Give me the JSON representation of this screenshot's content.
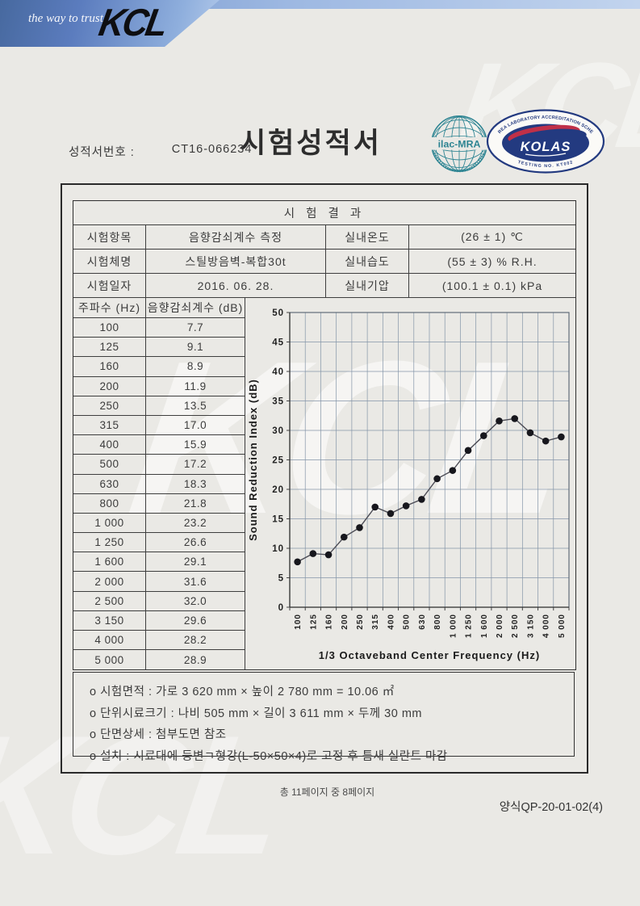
{
  "banner": {
    "tagline": "the way to trust",
    "logo_text": "KCL"
  },
  "title": "시험성적서",
  "report_no": {
    "label": "성적서번호 :",
    "value": "CT16-066234"
  },
  "seals": {
    "ilac": {
      "text": "ilac-MRA"
    },
    "kolas": {
      "ring_text": "KOREA LABORATORY ACCREDITATION SCHEME",
      "name": "KOLAS",
      "bottom_text": "TESTING NO. KT002"
    }
  },
  "results": {
    "header": "시 험 결 과",
    "rows": [
      {
        "label": "시험항목",
        "value": "음향감쇠계수 측정",
        "label2": "실내온도",
        "value2": "(26 ± 1) ℃"
      },
      {
        "label": "시험체명",
        "value": "스틸방음벽-복합30t",
        "label2": "실내습도",
        "value2": "(55 ± 3) % R.H."
      },
      {
        "label": "시험일자",
        "value": "2016. 06. 28.",
        "label2": "실내기압",
        "value2": "(100.1 ± 0.1) kPa"
      }
    ]
  },
  "freq_table": {
    "col1": "주파수 (Hz)",
    "col2": "음향감쇠계수 (dB)",
    "rows": [
      [
        "100",
        "7.7"
      ],
      [
        "125",
        "9.1"
      ],
      [
        "160",
        "8.9"
      ],
      [
        "200",
        "11.9"
      ],
      [
        "250",
        "13.5"
      ],
      [
        "315",
        "17.0"
      ],
      [
        "400",
        "15.9"
      ],
      [
        "500",
        "17.2"
      ],
      [
        "630",
        "18.3"
      ],
      [
        "800",
        "21.8"
      ],
      [
        "1 000",
        "23.2"
      ],
      [
        "1 250",
        "26.6"
      ],
      [
        "1 600",
        "29.1"
      ],
      [
        "2 000",
        "31.6"
      ],
      [
        "2 500",
        "32.0"
      ],
      [
        "3 150",
        "29.6"
      ],
      [
        "4 000",
        "28.2"
      ],
      [
        "5 000",
        "28.9"
      ]
    ]
  },
  "chart_data": {
    "type": "line",
    "categories": [
      "100",
      "125",
      "160",
      "200",
      "250",
      "315",
      "400",
      "500",
      "630",
      "800",
      "1 000",
      "1 250",
      "1 600",
      "2 000",
      "2 500",
      "3 150",
      "4 000",
      "5 000"
    ],
    "values": [
      7.7,
      9.1,
      8.9,
      11.9,
      13.5,
      17.0,
      15.9,
      17.2,
      18.3,
      21.8,
      23.2,
      26.6,
      29.1,
      31.6,
      32.0,
      29.6,
      28.2,
      28.9
    ],
    "title": "",
    "xlabel": "1/3 Octaveband Center Frequency (Hz)",
    "ylabel": "Sound Reduction Index (dB)",
    "ylim": [
      0,
      50
    ],
    "ytick_step": 5,
    "grid": true,
    "marker": "circle",
    "legend": "none"
  },
  "notes": [
    "o 시험면적 : 가로 3 620 mm × 높이 2 780 mm = 10.06 ㎡",
    "o 단위시료크기 : 나비 505 mm × 길이 3 611 mm × 두께 30 mm",
    "o 단면상세 : 첨부도면 참조",
    "o 설치 : 시료대에 등변ㄱ형강(L-50×50×4)로 고정 후 틈새 실란트 마감"
  ],
  "footer": {
    "page_info": "총 11페이지 중 8페이지",
    "form_no": "양식QP-20-01-02(4)"
  },
  "watermark": "KCL",
  "colors": {
    "banner_blue": "#5b7cbe",
    "banner_blue_light": "#b6cbea",
    "seal_teal": "#2d8492",
    "seal_navy": "#233a80",
    "seal_red": "#c03048",
    "grid_line": "#8495a8",
    "marker": "#17171d",
    "line": "#4c4c55"
  }
}
